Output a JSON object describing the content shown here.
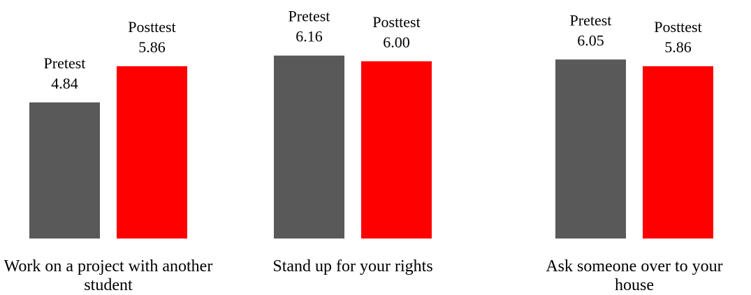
{
  "chart_data": {
    "type": "bar",
    "categories": [
      "Work on a project with another student",
      "Stand up for your rights",
      "Ask someone over to your house"
    ],
    "series": [
      {
        "name": "Pretest",
        "color": "#595959",
        "values": [
          4.84,
          6.16,
          6.05
        ],
        "value_labels": [
          "4.84",
          "6.16",
          "6.05"
        ]
      },
      {
        "name": "Posttest",
        "color": "#ff0000",
        "values": [
          5.86,
          6.0,
          5.86
        ],
        "value_labels": [
          "5.86",
          "6.00",
          "5.86"
        ]
      }
    ],
    "ylim": [
      1,
      7
    ]
  }
}
